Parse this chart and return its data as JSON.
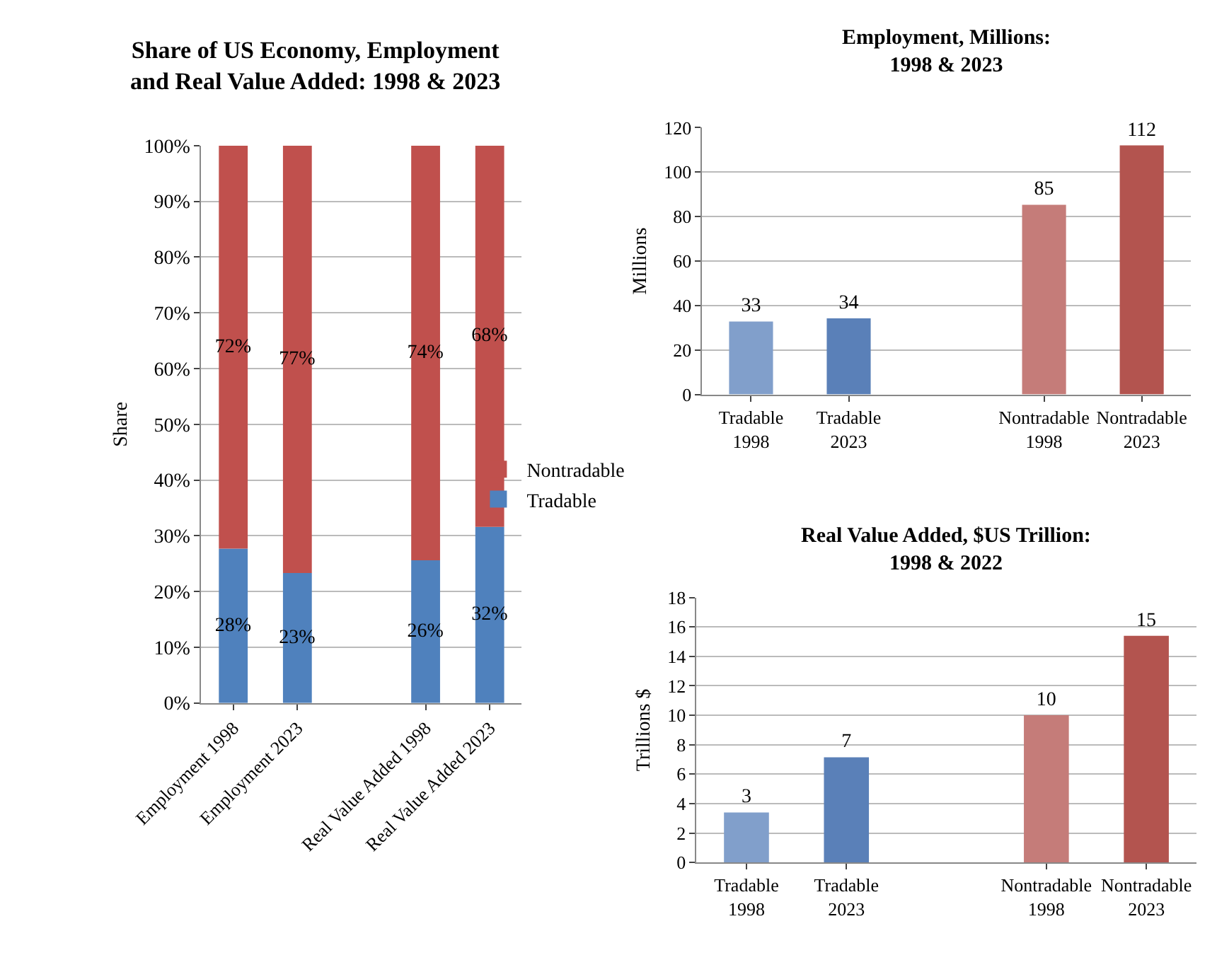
{
  "chart_data": [
    {
      "type": "bar",
      "title": "Share of US Economy, Employment\nand Real Value Added: 1998 & 2023",
      "ylabel": "Share",
      "stacked": true,
      "categories": [
        "Employment 1998",
        "Employment 2023",
        null,
        "Real Value Added 1998",
        "Real Value Added 2023"
      ],
      "series": [
        {
          "name": "Tradable",
          "color": "#4f81bd",
          "values": [
            27.7,
            23.3,
            null,
            25.6,
            31.6
          ],
          "value_labels": [
            "28%",
            "23%",
            null,
            "26%",
            "32%"
          ]
        },
        {
          "name": "Nontradable",
          "color": "#c0504d",
          "values": [
            72.3,
            76.7,
            null,
            74.4,
            68.4
          ],
          "value_labels": [
            "72%",
            "77%",
            null,
            "74%",
            "68%"
          ]
        }
      ],
      "ylim": [
        0,
        100
      ],
      "yticks": [
        {
          "value": 0,
          "label": "0%"
        },
        {
          "value": 10,
          "label": "10%"
        },
        {
          "value": 20,
          "label": "20%"
        },
        {
          "value": 30,
          "label": "30%"
        },
        {
          "value": 40,
          "label": "40%"
        },
        {
          "value": 50,
          "label": "50%"
        },
        {
          "value": 60,
          "label": "60%"
        },
        {
          "value": 70,
          "label": "70%"
        },
        {
          "value": 80,
          "label": "80%"
        },
        {
          "value": 90,
          "label": "90%"
        },
        {
          "value": 100,
          "label": "100%"
        }
      ],
      "grid": "y",
      "legend": "right"
    },
    {
      "type": "bar",
      "title": "Employment, Millions:\n1998 & 2023",
      "ylabel": "Millions",
      "categories": [
        "Tradable 1998",
        "Tradable 2023",
        null,
        "Nontradable 1998",
        "Nontradable 2023"
      ],
      "values": [
        32.8,
        34.2,
        null,
        85.3,
        112.0
      ],
      "value_labels": [
        "33",
        "34",
        null,
        "85",
        "112"
      ],
      "colors": [
        "#819fcb",
        "#5a80b8",
        null,
        "#c57c79",
        "#b3544f"
      ],
      "ylim": [
        0,
        120
      ],
      "yticks": [
        0,
        20,
        40,
        60,
        80,
        100,
        120
      ],
      "grid": "y"
    },
    {
      "type": "bar",
      "title": "Real Value Added, $US Trillion:\n1998 & 2022",
      "ylabel": "Trillions $",
      "categories": [
        "Tradable 1998",
        "Tradable 2023",
        null,
        "Nontradable 1998",
        "Nontradable 2023"
      ],
      "values": [
        3.4,
        7.15,
        null,
        10.0,
        15.4
      ],
      "value_labels": [
        "3",
        "7",
        null,
        "10",
        "15"
      ],
      "colors": [
        "#819fcb",
        "#5a80b8",
        null,
        "#c57c79",
        "#b3544f"
      ],
      "ylim": [
        0,
        18
      ],
      "yticks": [
        0,
        2,
        4,
        6,
        8,
        10,
        12,
        14,
        16,
        18
      ],
      "grid": "y"
    }
  ]
}
